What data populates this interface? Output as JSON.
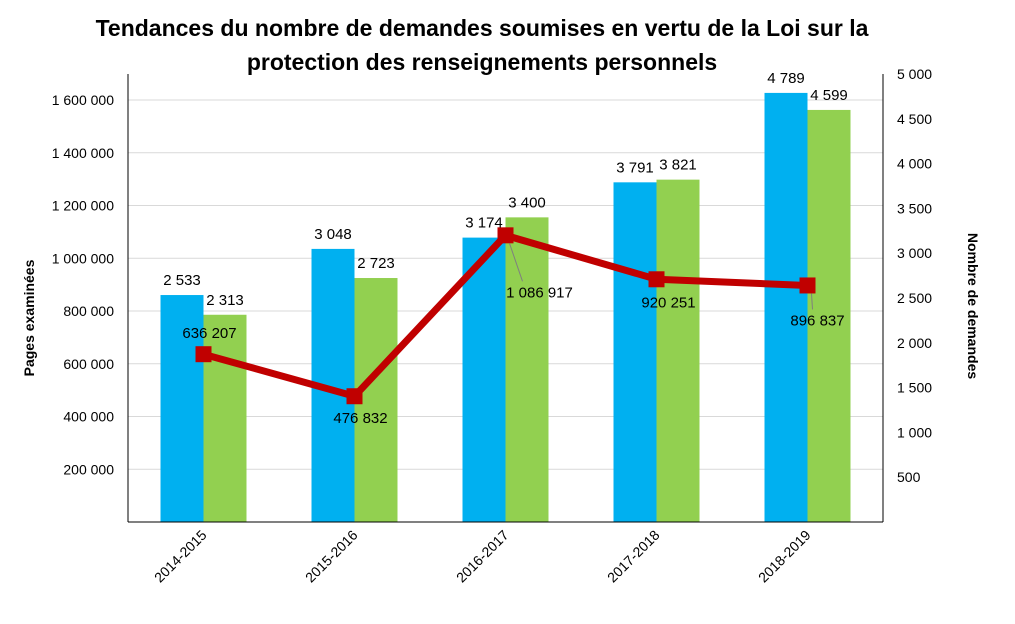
{
  "chart_data": {
    "type": "bar+line",
    "title_lines": [
      "Tendances du nombre de demandes soumises en vertu de la Loi sur la",
      "protection des renseignements personnels"
    ],
    "categories": [
      "2014-2015",
      "2015-2016",
      "2016-2017",
      "2017-2018",
      "2018-2019"
    ],
    "y_left": {
      "label": "Pages examinées",
      "range": [
        0,
        1600000
      ],
      "ticks": [
        "200 000",
        "400 000",
        "600 000",
        "800 000",
        "1 000 000",
        "1 200 000",
        "1 400 000",
        "1 600 000"
      ],
      "tick_values": [
        200000,
        400000,
        600000,
        800000,
        1000000,
        1200000,
        1400000,
        1600000
      ]
    },
    "y_right": {
      "label": "Nombre de demandes",
      "range": [
        0,
        5000
      ],
      "ticks": [
        "500",
        "1 000",
        "1 500",
        "2 000",
        "2 500",
        "3 000",
        "3 500",
        "4 000",
        "4 500",
        "5 000"
      ],
      "tick_values": [
        500,
        1000,
        1500,
        2000,
        2500,
        3000,
        3500,
        4000,
        4500,
        5000
      ]
    },
    "grid": true,
    "legend": "none",
    "series": [
      {
        "type": "bar",
        "axis": "right",
        "color": "#00B0F0",
        "values": [
          2533,
          3048,
          3174,
          3791,
          4789
        ],
        "labels": [
          "2 533",
          "3 048",
          "3 174",
          "3 791",
          "4 789"
        ]
      },
      {
        "type": "bar",
        "axis": "right",
        "color": "#92D050",
        "values": [
          2313,
          2723,
          3400,
          3821,
          4599
        ],
        "labels": [
          "2 313",
          "2 723",
          "3 400",
          "3 821",
          "4 599"
        ]
      },
      {
        "type": "line",
        "axis": "left",
        "color": "#C00000",
        "marker": "square",
        "values": [
          636207,
          476832,
          1086917,
          920251,
          896837
        ],
        "labels": [
          "636 207",
          "476 832",
          "1 086 917",
          "920 251",
          "896 837"
        ]
      }
    ]
  }
}
